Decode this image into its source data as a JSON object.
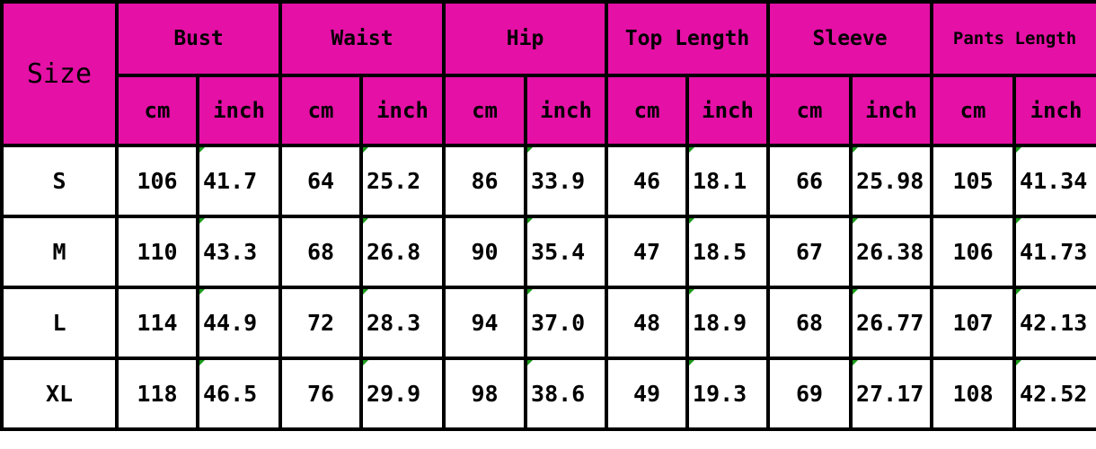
{
  "table": {
    "corner": "Size",
    "groups": [
      "Bust",
      "Waist",
      "Hip",
      "Top Length",
      "Sleeve",
      "Pants Length"
    ],
    "units": [
      "cm",
      "inch",
      "cm",
      "inch",
      "cm",
      "inch",
      "cm",
      "inch",
      "cm",
      "inch",
      "cm",
      "inch"
    ],
    "rows": [
      [
        "S",
        "106",
        "41.7",
        "64",
        "25.2",
        "86",
        "33.9",
        "46",
        "18.1",
        "66",
        "25.98",
        "105",
        "41.34"
      ],
      [
        "M",
        "110",
        "43.3",
        "68",
        "26.8",
        "90",
        "35.4",
        "47",
        "18.5",
        "67",
        "26.38",
        "106",
        "41.73"
      ],
      [
        "L",
        "114",
        "44.9",
        "72",
        "28.3",
        "94",
        "37.0",
        "48",
        "18.9",
        "68",
        "26.77",
        "107",
        "42.13"
      ],
      [
        "XL",
        "118",
        "46.5",
        "76",
        "29.9",
        "98",
        "38.6",
        "49",
        "19.3",
        "69",
        "27.17",
        "108",
        "42.52"
      ]
    ]
  }
}
